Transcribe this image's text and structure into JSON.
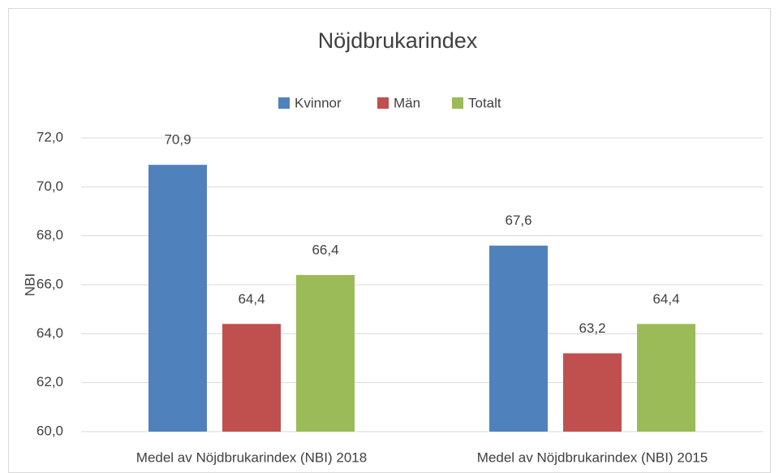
{
  "chart_data": {
    "type": "bar",
    "title": "Nöjdbrukarindex",
    "y_label": "NBI",
    "categories": [
      "Medel av Nöjdbrukarindex (NBI) 2018",
      "Medel av Nöjdbrukarindex (NBI) 2015"
    ],
    "series": [
      {
        "name": "Kvinnor",
        "color": "#4f81bd",
        "values": [
          70.9,
          67.6
        ],
        "value_labels": [
          "70,9",
          "67,6"
        ]
      },
      {
        "name": "Män",
        "color": "#c0504d",
        "values": [
          64.4,
          63.2
        ],
        "value_labels": [
          "64,4",
          "63,2"
        ]
      },
      {
        "name": "Totalt",
        "color": "#9bbb59",
        "values": [
          66.4,
          64.4
        ],
        "value_labels": [
          "66,4",
          "64,4"
        ]
      }
    ],
    "ylim": [
      60,
      72
    ],
    "yticks": [
      {
        "value": 60,
        "label": "60,0"
      },
      {
        "value": 62,
        "label": "62,0"
      },
      {
        "value": 64,
        "label": "64,0"
      },
      {
        "value": 66,
        "label": "66,0"
      },
      {
        "value": 68,
        "label": "68,0"
      },
      {
        "value": 70,
        "label": "70,0"
      },
      {
        "value": 72,
        "label": "72,0"
      }
    ],
    "grid": true,
    "legend": "top"
  }
}
